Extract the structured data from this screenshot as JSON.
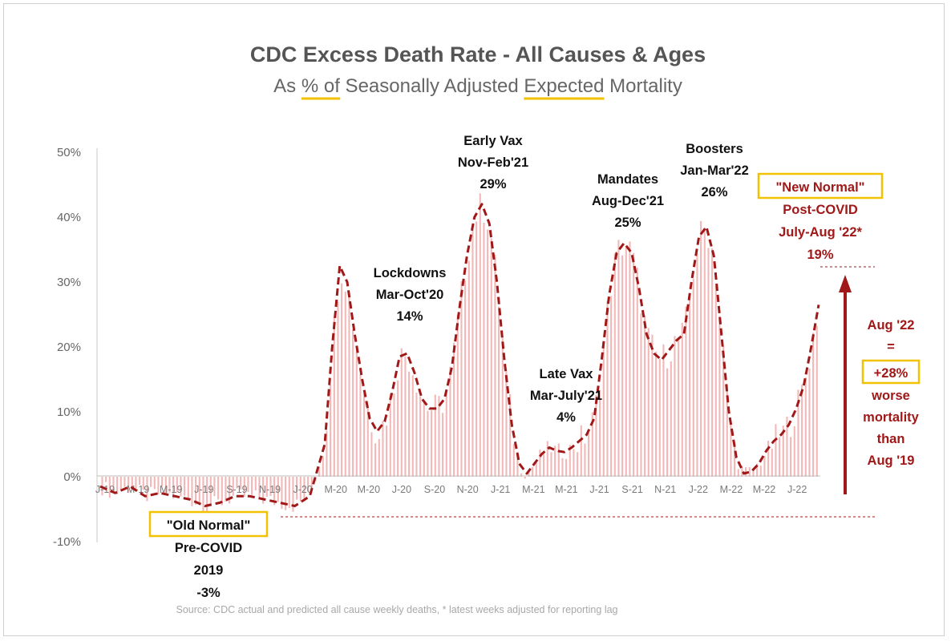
{
  "chart_data": {
    "type": "bar",
    "title": "CDC Excess Death Rate - All Causes & Ages",
    "subtitle_parts": [
      "As ",
      "% of",
      " Seasonally Adjusted ",
      "Expected",
      " Mortality"
    ],
    "ylim": [
      -10,
      50
    ],
    "yticks": [
      "50%",
      "40%",
      "30%",
      "20%",
      "10%",
      "0%",
      "-10%"
    ],
    "ytick_values": [
      50,
      40,
      30,
      20,
      10,
      0,
      -10
    ],
    "xticks": [
      "J-19",
      "M-19",
      "M-19",
      "J-19",
      "S-19",
      "N-19",
      "J-20",
      "M-20",
      "M-20",
      "J-20",
      "S-20",
      "N-20",
      "J-21",
      "M-21",
      "M-21",
      "J-21",
      "S-21",
      "N-21",
      "J-22",
      "M-22",
      "M-22",
      "J-22"
    ],
    "grid": false,
    "bar_color": "#f2b8b8",
    "trend_color": "#a01818",
    "series": [
      {
        "weeks": 192,
        "trend_points": [
          [
            0,
            -1.5
          ],
          [
            4,
            -2.5
          ],
          [
            8,
            -1.5
          ],
          [
            12,
            -3.0
          ],
          [
            16,
            -2.5
          ],
          [
            20,
            -3.0
          ],
          [
            24,
            -3.5
          ],
          [
            28,
            -4.5
          ],
          [
            32,
            -4.0
          ],
          [
            36,
            -3.0
          ],
          [
            40,
            -3.0
          ],
          [
            44,
            -3.5
          ],
          [
            48,
            -4.0
          ],
          [
            52,
            -4.5
          ],
          [
            56,
            -3.0
          ],
          [
            60,
            5.0
          ],
          [
            62,
            20.0
          ],
          [
            64,
            32.5
          ],
          [
            66,
            30.0
          ],
          [
            68,
            22.0
          ],
          [
            70,
            15.0
          ],
          [
            72,
            9.0
          ],
          [
            74,
            7.0
          ],
          [
            76,
            8.5
          ],
          [
            78,
            13.0
          ],
          [
            80,
            18.5
          ],
          [
            82,
            19.0
          ],
          [
            84,
            16.0
          ],
          [
            86,
            12.0
          ],
          [
            88,
            10.5
          ],
          [
            90,
            10.5
          ],
          [
            92,
            12.0
          ],
          [
            94,
            17.0
          ],
          [
            96,
            26.0
          ],
          [
            98,
            34.0
          ],
          [
            100,
            40.0
          ],
          [
            102,
            42.0
          ],
          [
            104,
            39.0
          ],
          [
            106,
            30.0
          ],
          [
            108,
            18.0
          ],
          [
            110,
            8.0
          ],
          [
            112,
            2.0
          ],
          [
            114,
            0.5
          ],
          [
            116,
            2.0
          ],
          [
            118,
            3.5
          ],
          [
            120,
            4.5
          ],
          [
            122,
            4.0
          ],
          [
            124,
            3.8
          ],
          [
            126,
            4.5
          ],
          [
            128,
            5.5
          ],
          [
            130,
            6.5
          ],
          [
            132,
            9.0
          ],
          [
            134,
            18.0
          ],
          [
            136,
            28.0
          ],
          [
            138,
            34.5
          ],
          [
            140,
            36.0
          ],
          [
            142,
            34.5
          ],
          [
            144,
            29.0
          ],
          [
            146,
            22.0
          ],
          [
            148,
            19.0
          ],
          [
            150,
            18.0
          ],
          [
            152,
            19.5
          ],
          [
            154,
            21.0
          ],
          [
            156,
            22.0
          ],
          [
            158,
            30.0
          ],
          [
            160,
            37.0
          ],
          [
            162,
            38.5
          ],
          [
            164,
            34.0
          ],
          [
            166,
            22.0
          ],
          [
            168,
            10.0
          ],
          [
            170,
            3.0
          ],
          [
            172,
            0.5
          ],
          [
            174,
            0.8
          ],
          [
            176,
            2.0
          ],
          [
            178,
            4.0
          ],
          [
            180,
            5.5
          ],
          [
            182,
            6.5
          ],
          [
            184,
            8.0
          ],
          [
            186,
            10.5
          ],
          [
            188,
            14.0
          ],
          [
            190,
            20.0
          ],
          [
            192,
            26.5
          ]
        ]
      }
    ],
    "annotations": {
      "lockdowns": [
        "Lockdowns",
        "Mar-Oct'20",
        "14%"
      ],
      "early_vax": [
        "Early Vax",
        "Nov-Feb'21",
        "29%"
      ],
      "late_vax": [
        "Late Vax",
        "Mar-July'21",
        "4%"
      ],
      "mandates": [
        "Mandates",
        "Aug-Dec'21",
        "25%"
      ],
      "boosters": [
        "Boosters",
        "Jan-Mar'22",
        "26%"
      ],
      "new_normal": [
        "\"New Normal\"",
        "Post-COVID",
        "July-Aug '22*",
        "19%"
      ],
      "old_normal": [
        "\"Old Normal\"",
        "Pre-COVID",
        "2019",
        "-3%"
      ],
      "aug22": [
        "Aug '22",
        "=",
        "+28%",
        "worse",
        "mortality",
        "than",
        "Aug '19"
      ]
    },
    "source": "Source: CDC actual and predicted all cause weekly deaths, * latest weeks adjusted for reporting lag"
  }
}
